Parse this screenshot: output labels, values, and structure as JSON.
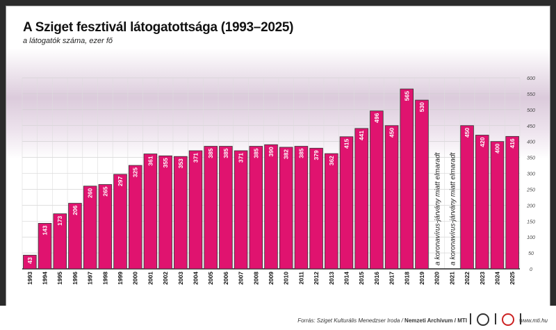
{
  "chart_data": {
    "type": "bar",
    "title": "A Sziget fesztivál látogatottsága (1993–2025)",
    "subtitle": "a látogatók száma, ezer fő",
    "categories": [
      "1993",
      "1994",
      "1995",
      "1996",
      "1997",
      "1998",
      "1999",
      "2000",
      "2001",
      "2002",
      "2003",
      "2004",
      "2005",
      "2006",
      "2007",
      "2008",
      "2009",
      "2010",
      "2011",
      "2012",
      "2013",
      "2014",
      "2015",
      "2016",
      "2017",
      "2018",
      "2019",
      "2020",
      "2021",
      "2022",
      "2023",
      "2024",
      "2025"
    ],
    "values": [
      43,
      143,
      173,
      206,
      260,
      265,
      297,
      325,
      361,
      355,
      353,
      371,
      385,
      385,
      371,
      385,
      390,
      382,
      385,
      379,
      362,
      415,
      441,
      496,
      450,
      565,
      530,
      null,
      null,
      450,
      420,
      400,
      416
    ],
    "annotations": {
      "2020": "a koronavírus-járvány miatt elmaradt",
      "2021": "a koronavírus-járvány miatt elmaradt"
    },
    "ylim": [
      0,
      600
    ],
    "yticks": [
      0,
      50,
      100,
      150,
      200,
      250,
      300,
      350,
      400,
      450,
      500,
      550,
      600
    ],
    "y_axis_position": "right",
    "grid": true,
    "bar_color": "#e0136f",
    "label_color": "#ffffff"
  },
  "footer": {
    "source_prefix": "Forrás: Sziget Kulturális Menedzser Iroda / ",
    "source_bold": "Nemzeti Archívum",
    "source_suffix": " / MTI",
    "url": "www.mti.hu"
  }
}
